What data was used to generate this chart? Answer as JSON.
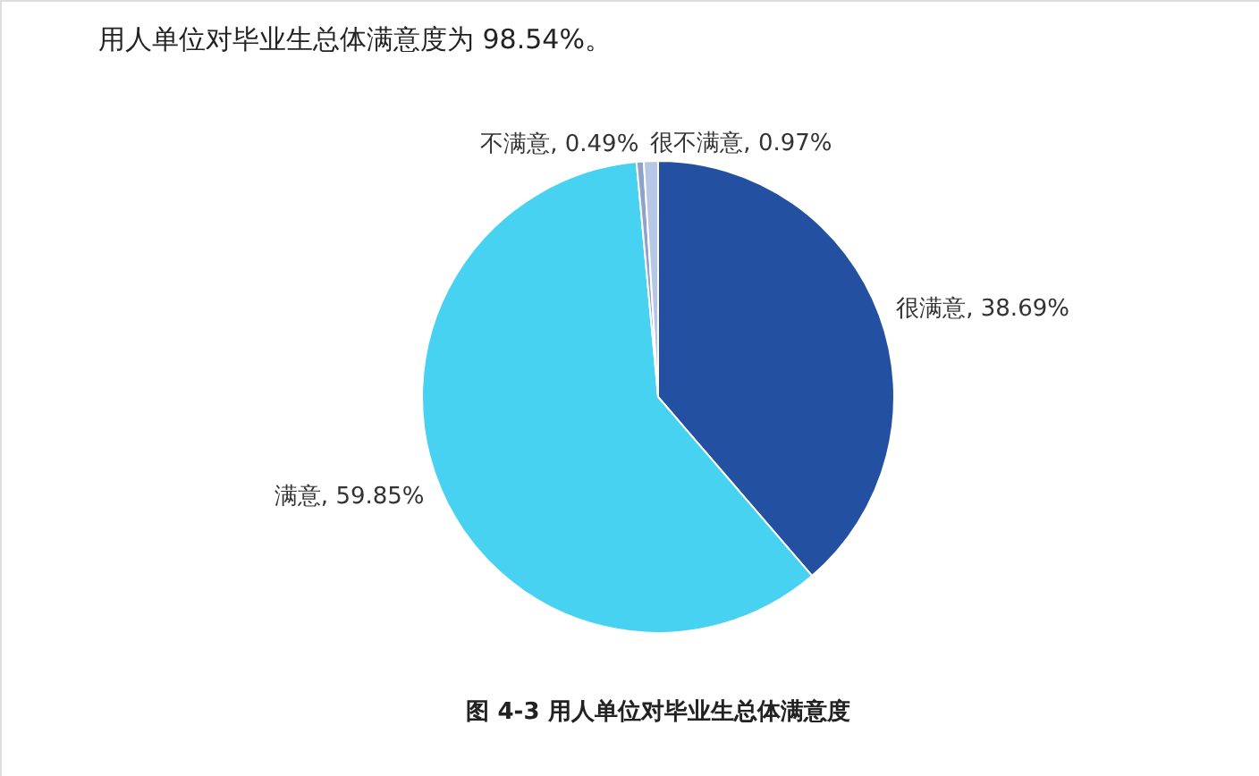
{
  "chart_data": {
    "type": "pie",
    "title": "用人单位对毕业生总体满意度为 98.54%。",
    "categories": [
      "很满意",
      "满意",
      "不满意",
      "很不满意"
    ],
    "values": [
      38.69,
      59.85,
      0.49,
      0.97
    ],
    "colors": [
      "#2350a0",
      "#48d2f2",
      "#8fa2cc",
      "#b6c6e6"
    ],
    "value_labels": [
      "38.69%",
      "59.85%",
      "0.49%",
      "0.97%"
    ],
    "annotations": [
      "图  4-3   用人单位对毕业生总体满意度"
    ]
  }
}
